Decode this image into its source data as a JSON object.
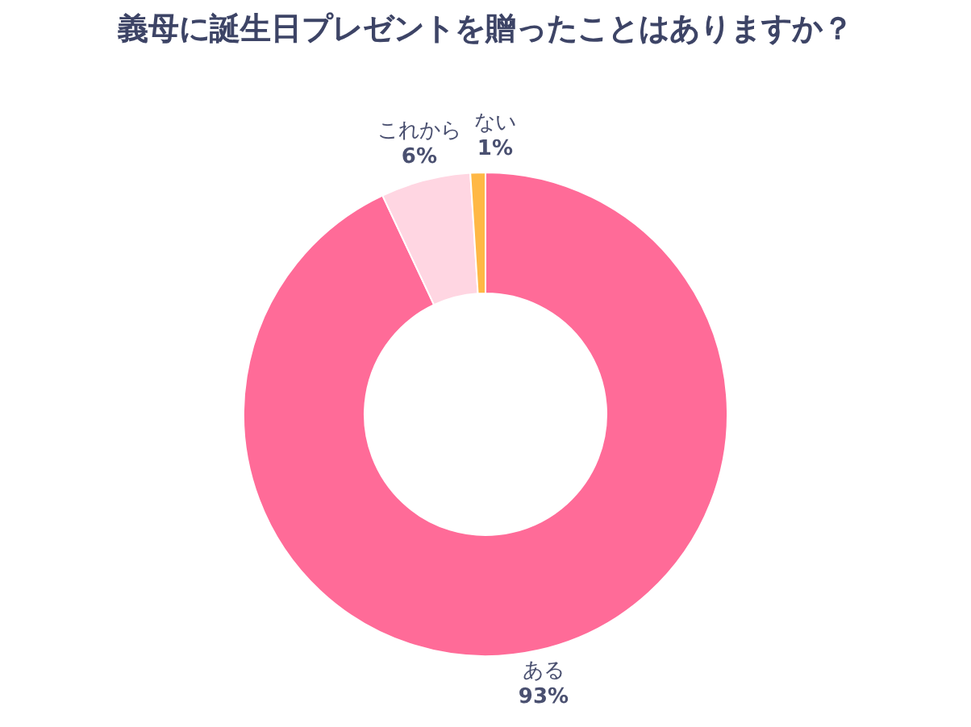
{
  "chart_data": {
    "type": "donut",
    "title": "義母に誕生日プレゼントを贈ったことはありますか？",
    "categories": [
      "ある",
      "これから",
      "ない"
    ],
    "values": [
      93,
      6,
      1
    ],
    "colors": [
      "#ff6b98",
      "#ffd6e2",
      "#ffb845"
    ],
    "value_labels": [
      "93%",
      "6%",
      "1%"
    ],
    "legend": false
  }
}
